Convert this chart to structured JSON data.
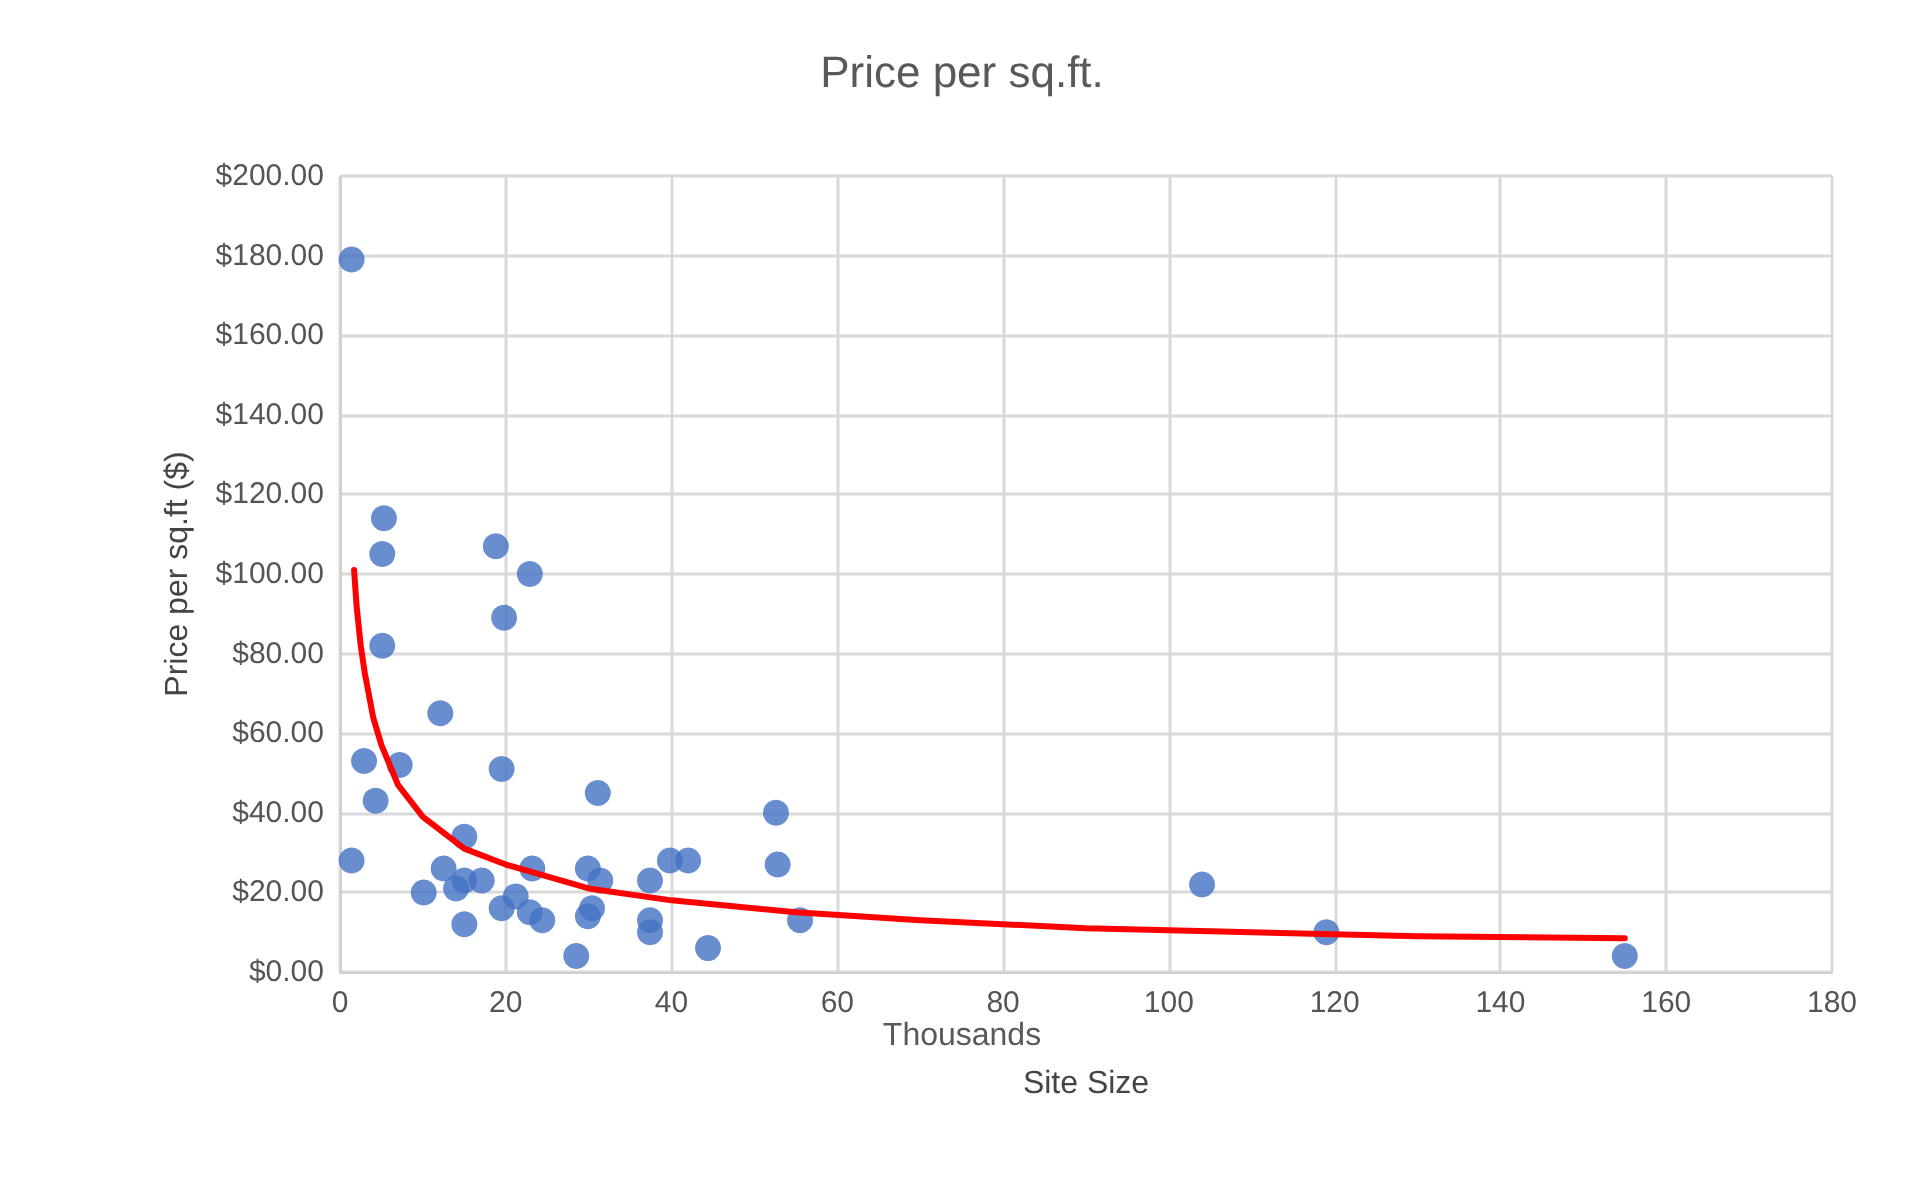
{
  "chart_data": {
    "type": "scatter",
    "title": "Price per sq.ft.",
    "xlabel": "Site Size",
    "ylabel": "Price per sq.ft ($)",
    "annotations": [
      "Thousands"
    ],
    "xlim": [
      0,
      180
    ],
    "xticks": [
      0,
      20,
      40,
      60,
      80,
      100,
      120,
      140,
      160,
      180
    ],
    "ylim": [
      0,
      200
    ],
    "yticks": [
      {
        "value": 0,
        "label": "$0.00"
      },
      {
        "value": 20,
        "label": "$20.00"
      },
      {
        "value": 40,
        "label": "$40.00"
      },
      {
        "value": 60,
        "label": "$60.00"
      },
      {
        "value": 80,
        "label": "$80.00"
      },
      {
        "value": 100,
        "label": "$100.00"
      },
      {
        "value": 120,
        "label": "$120.00"
      },
      {
        "value": 140,
        "label": "$140.00"
      },
      {
        "value": 160,
        "label": "$160.00"
      },
      {
        "value": 180,
        "label": "$180.00"
      },
      {
        "value": 200,
        "label": "$200.00"
      }
    ],
    "grid": true,
    "marker": "circle",
    "series": [
      {
        "color": "#4472c4",
        "x": [
          1.4,
          5.3,
          5.1,
          5.1,
          18.8,
          19.8,
          22.9,
          12.1,
          2.9,
          7.2,
          19.5,
          4.3,
          31.1,
          52.6,
          15,
          1.4,
          12.5,
          14,
          15,
          17.1,
          10.1,
          15,
          19.5,
          21.2,
          22.9,
          24.4,
          23.2,
          29.9,
          31.4,
          29.9,
          30.4,
          28.5,
          37.4,
          37.4,
          37.4,
          39.8,
          42,
          44.4,
          52.8,
          55.5,
          104,
          119,
          155
        ],
        "values": [
          179,
          114,
          105,
          82,
          107,
          89,
          100,
          65,
          53,
          52,
          51,
          43,
          45,
          40,
          34,
          28,
          26,
          21,
          23,
          23,
          20,
          12,
          16,
          19,
          15,
          13,
          26,
          26,
          23,
          14,
          16,
          4,
          23,
          13,
          10,
          28,
          28,
          6,
          27,
          13,
          22,
          10,
          4
        ]
      },
      {
        "type": "line",
        "color": "#ff0000",
        "marker": "none",
        "line_style": "solid",
        "x": [
          1.7,
          2,
          2.5,
          3,
          4,
          5,
          7,
          10,
          15,
          20,
          30,
          40,
          55,
          70,
          90,
          110,
          130,
          155
        ],
        "values": [
          101,
          92,
          82,
          75,
          64,
          57,
          47,
          39,
          31,
          27,
          21,
          18,
          15,
          13,
          11,
          10,
          9,
          8.5
        ]
      }
    ]
  }
}
